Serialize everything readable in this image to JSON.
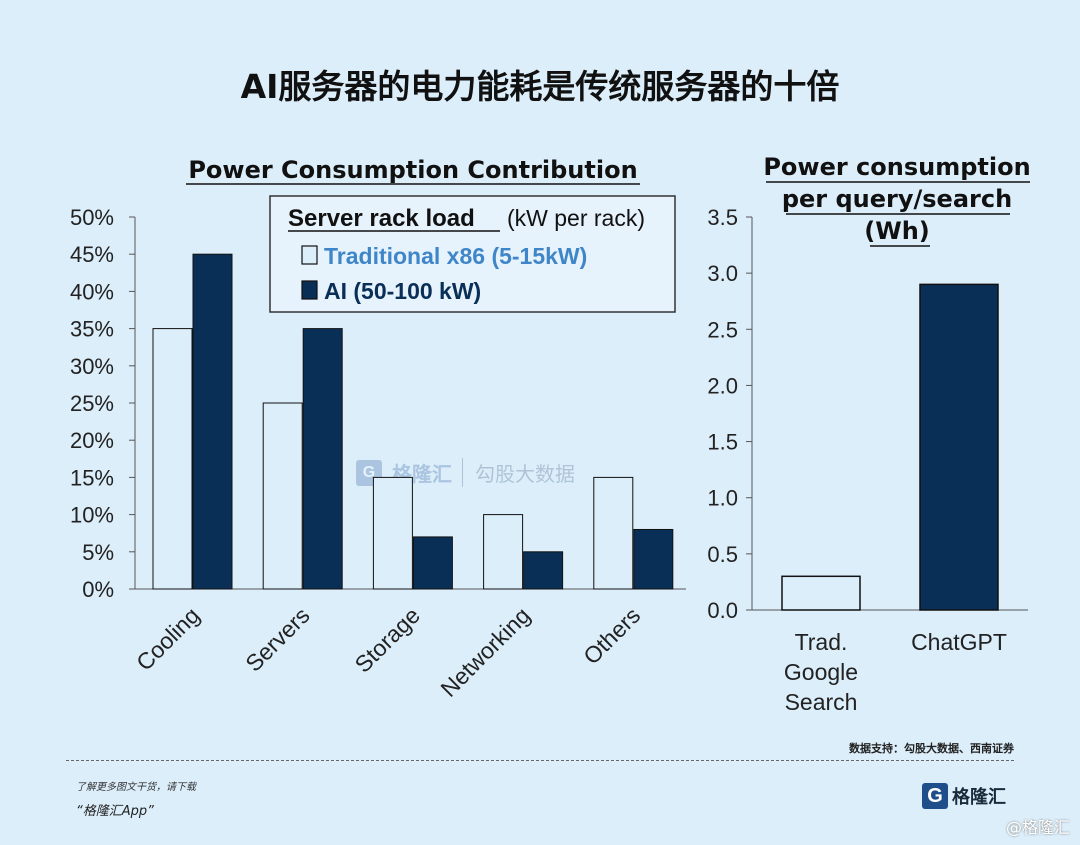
{
  "title": "AI服务器的电力能耗是传统服务器的十倍",
  "chart_data": [
    {
      "type": "bar",
      "title": "Power Consumption Contribution",
      "categories": [
        "Cooling",
        "Servers",
        "Storage",
        "Networking",
        "Others"
      ],
      "series": [
        {
          "name": "Traditional x86 (5-15kW)",
          "values": [
            35,
            25,
            15,
            10,
            15
          ],
          "color": "#ddeefb"
        },
        {
          "name": "AI (50-100 kW)",
          "values": [
            45,
            35,
            7,
            5,
            8
          ],
          "color": "#0a2f57"
        }
      ],
      "ylim": [
        0,
        50
      ],
      "yticks": [
        "0%",
        "5%",
        "10%",
        "15%",
        "20%",
        "25%",
        "30%",
        "35%",
        "40%",
        "45%",
        "50%"
      ],
      "legend": {
        "title_bold": "Server rack load",
        "title_unit": "(kW per rack)",
        "position": "top-right"
      }
    },
    {
      "type": "bar",
      "title_lines": [
        "Power consumption",
        "per query/search",
        "(Wh)"
      ],
      "categories": [
        [
          "Trad.",
          "Google",
          "Search"
        ],
        [
          "ChatGPT"
        ]
      ],
      "values": [
        0.3,
        2.9
      ],
      "colors": [
        "#ddeefb",
        "#0a2f57"
      ],
      "ylim": [
        0,
        3.5
      ],
      "yticks": [
        "0.0",
        "0.5",
        "1.0",
        "1.5",
        "2.0",
        "2.5",
        "3.0",
        "3.5"
      ]
    }
  ],
  "footer": {
    "source": "数据支持：勾股大数据、西南证券",
    "promo_line1": "了解更多图文干货，请下载",
    "promo_line2": "“格隆汇App”",
    "brand_mark": "G",
    "brand_name": "格隆汇",
    "corner_mark": "@格隆汇"
  },
  "watermark": {
    "mark": "G",
    "name": "格隆汇",
    "name2": "勾股大数据"
  }
}
